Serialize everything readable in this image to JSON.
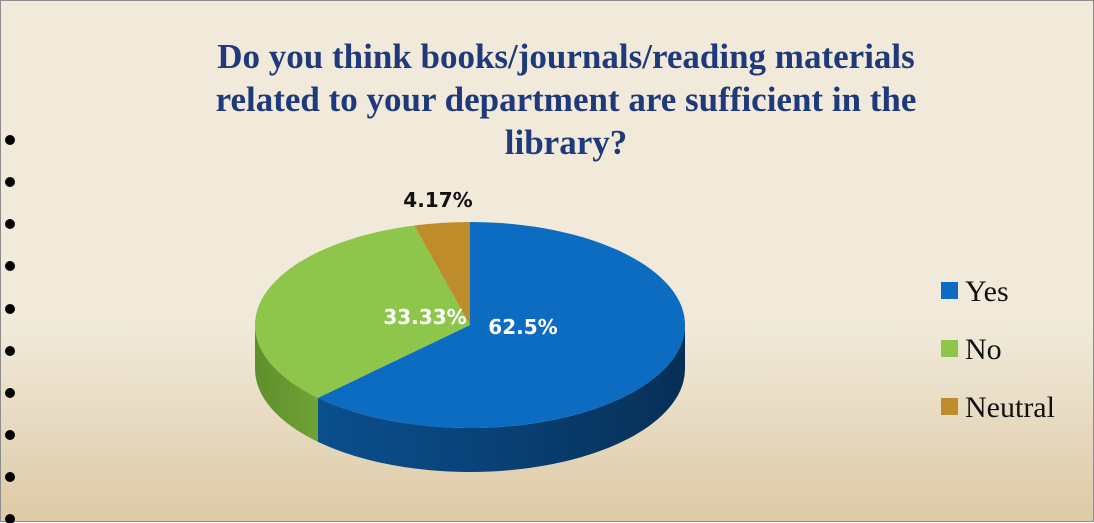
{
  "chart_data": {
    "type": "pie",
    "title_lines": [
      "Do you think books/journals/reading materials",
      "related to your department are sufficient in the",
      "library?"
    ],
    "categories": [
      "Yes",
      "No",
      "Neutral"
    ],
    "values": [
      62.5,
      33.33,
      4.17
    ],
    "data_labels": [
      "62.5%",
      "33.33%",
      "4.17%"
    ],
    "colors": {
      "Yes": "#0b6cc1",
      "No": "#8ec64c",
      "Neutral": "#bf8c2c",
      "title": "#1f3a7a"
    },
    "style": "3d",
    "legend_position": "right"
  }
}
